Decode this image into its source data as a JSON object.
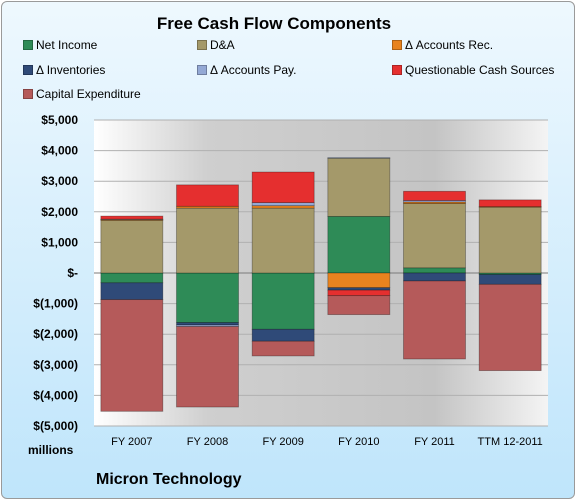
{
  "chart_data": {
    "type": "bar",
    "stacked": true,
    "title": "Free Cash Flow Components",
    "units_label": "millions",
    "company": "Micron Technology",
    "categories": [
      "FY 2007",
      "FY 2008",
      "FY 2009",
      "FY 2010",
      "FY 2011",
      "TTM 12-2011"
    ],
    "ylim": [
      -5000,
      5000
    ],
    "ytick_values": [
      5000,
      4000,
      3000,
      2000,
      1000,
      0,
      -1000,
      -2000,
      -3000,
      -4000,
      -5000
    ],
    "ytick_labels": [
      "$5,000",
      "$4,000",
      "$3,000",
      "$2,000",
      "$1,000",
      "$-",
      "$(1,000)",
      "$(2,000)",
      "$(3,000)",
      "$(4,000)",
      "$(5,000)"
    ],
    "legend_placement": "top",
    "series": [
      {
        "name": "Net Income",
        "color": "#2e8b57",
        "values": [
          -320,
          -1620,
          -1840,
          1850,
          170,
          -50
        ]
      },
      {
        "name": "D&A",
        "color": "#a4996a",
        "values": [
          1720,
          2120,
          2120,
          1900,
          2100,
          2150
        ]
      },
      {
        "name": "Δ Accounts Rec.",
        "color": "#e8831f",
        "values": [
          30,
          60,
          80,
          -480,
          50,
          20
        ]
      },
      {
        "name": "Δ Inventories",
        "color": "#2f4a78",
        "values": [
          -550,
          -80,
          -390,
          -80,
          -260,
          -320
        ]
      },
      {
        "name": "Δ Accounts Pay.",
        "color": "#94a9d5",
        "values": [
          10,
          -50,
          100,
          20,
          50,
          0
        ]
      },
      {
        "name": "Questionable Cash Sources",
        "color": "#e52f2f",
        "values": [
          100,
          700,
          1000,
          -180,
          300,
          220
        ]
      },
      {
        "name": "Capital Expenditure",
        "color": "#b55a5a",
        "values": [
          -3650,
          -2630,
          -480,
          -620,
          -2550,
          -2820
        ]
      }
    ]
  }
}
